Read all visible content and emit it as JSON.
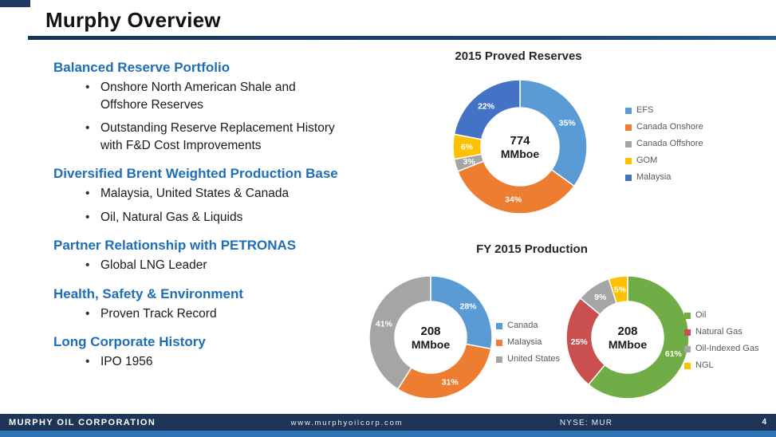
{
  "slide": {
    "title": "Murphy Overview"
  },
  "theme": {
    "heading_blue": "#1F6EB5",
    "rule_navy": "#17375E",
    "footer_navy": "#1F3558",
    "footer_strip_blue": "#2E75B6"
  },
  "sections": [
    {
      "heading": "Balanced Reserve Portfolio",
      "bullets": [
        "Onshore North American Shale and\nOffshore Reserves",
        "Outstanding Reserve Replacement History\nwith F&D Cost Improvements"
      ]
    },
    {
      "heading": "Diversified Brent Weighted Production Base",
      "bullets": [
        "Malaysia, United States & Canada",
        "Oil, Natural Gas & Liquids"
      ]
    },
    {
      "heading": "Partner Relationship with PETRONAS",
      "bullets": [
        "Global LNG Leader"
      ]
    },
    {
      "heading": "Health, Safety & Environment",
      "bullets": [
        "Proven Track Record"
      ]
    },
    {
      "heading": "Long Corporate History",
      "bullets": [
        "IPO 1956"
      ]
    }
  ],
  "chart_data": [
    {
      "type": "pie",
      "donut": true,
      "title": "2015 Proved Reserves",
      "center_value": "774",
      "center_unit": "MMboe",
      "labels": [
        "EFS",
        "Canada Onshore",
        "Canada Offshore",
        "GOM",
        "Malaysia"
      ],
      "values": [
        35,
        34,
        3,
        6,
        22
      ],
      "colors": [
        "#5B9BD5",
        "#ED7D31",
        "#A5A5A5",
        "#FFC000",
        "#4472C4"
      ],
      "legend_position": "right"
    },
    {
      "type": "pie",
      "donut": true,
      "title": "FY 2015 Production",
      "center_value": "208",
      "center_unit": "MMboe",
      "labels": [
        "Canada",
        "Malaysia",
        "United States"
      ],
      "values": [
        28,
        31,
        41
      ],
      "colors": [
        "#5B9BD5",
        "#ED7D31",
        "#A5A5A5"
      ],
      "legend_position": "right"
    },
    {
      "type": "pie",
      "donut": true,
      "title": "FY 2015 Production",
      "center_value": "208",
      "center_unit": "MMboe",
      "labels": [
        "Oil",
        "Natural Gas",
        "Oil-Indexed Gas",
        "NGL"
      ],
      "values": [
        61,
        25,
        9,
        5
      ],
      "colors": [
        "#70AD47",
        "#C9504E",
        "#A5A5A5",
        "#FFC000"
      ],
      "legend_position": "right"
    }
  ],
  "footer": {
    "company": "MURPHY OIL CORPORATION",
    "website": "www.murphyoilcorp.com",
    "ticker": "NYSE: MUR",
    "page": "4"
  }
}
